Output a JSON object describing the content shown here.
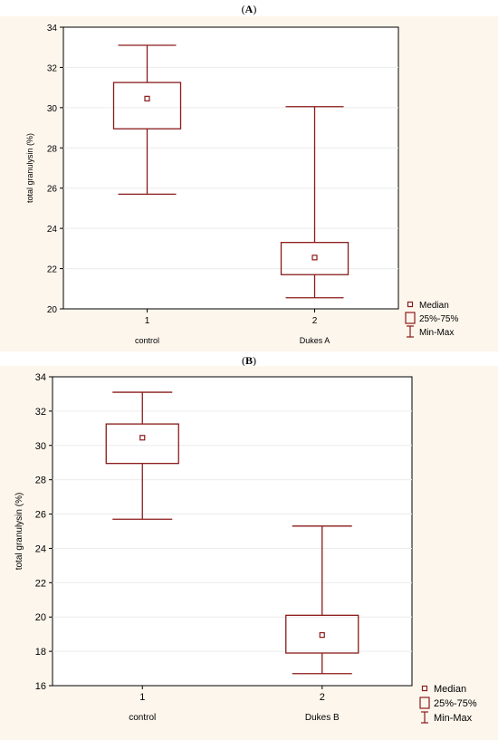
{
  "figure": {
    "panel_a_label": "A",
    "panel_b_label": "B"
  },
  "colors": {
    "background": "#fdf6ec",
    "box": "#8b1a1a",
    "plot_area": "#ffffff"
  },
  "legend": {
    "median": "Median",
    "iqr": "25%-75%",
    "range": "Min-Max"
  },
  "chart_data": [
    {
      "type": "box",
      "panel": "A",
      "ylabel": "total granulysin (%)",
      "ylim": [
        20,
        34
      ],
      "yticks": [
        20,
        22,
        24,
        26,
        28,
        30,
        32,
        34
      ],
      "grid": true,
      "legend_position": "bottom-right",
      "categories": [
        {
          "tick": "1",
          "name": "control"
        },
        {
          "tick": "2",
          "name": "Dukes A"
        }
      ],
      "boxes": [
        {
          "min": 25.7,
          "q1": 28.95,
          "median": 30.45,
          "q3": 31.25,
          "max": 33.1
        },
        {
          "min": 20.55,
          "q1": 21.7,
          "median": 22.55,
          "q3": 23.3,
          "max": 30.05
        }
      ]
    },
    {
      "type": "box",
      "panel": "B",
      "ylabel": "total granulysin (%)",
      "ylim": [
        16,
        34
      ],
      "yticks": [
        16,
        18,
        20,
        22,
        24,
        26,
        28,
        30,
        32,
        34
      ],
      "grid": true,
      "legend_position": "bottom-right",
      "categories": [
        {
          "tick": "1",
          "name": "control"
        },
        {
          "tick": "2",
          "name": "Dukes B"
        }
      ],
      "boxes": [
        {
          "min": 25.7,
          "q1": 28.95,
          "median": 30.45,
          "q3": 31.25,
          "max": 33.1
        },
        {
          "min": 16.7,
          "q1": 17.9,
          "median": 18.95,
          "q3": 20.1,
          "max": 25.3
        }
      ]
    }
  ]
}
